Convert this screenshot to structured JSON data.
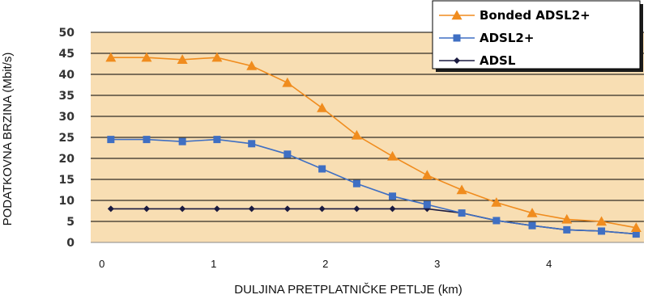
{
  "chart_data": {
    "type": "line",
    "xlabel": "DULJINA PRETPLATNIČKE PETLJE (km)",
    "ylabel": "PODATKOVNA BRZINA (Mbit/s)",
    "xlim": [
      -0.1,
      4.85
    ],
    "ylim": [
      0,
      50
    ],
    "xticks": [
      "0",
      "1",
      "2",
      "3",
      "4"
    ],
    "yticks": [
      "0",
      "5",
      "10",
      "15",
      "20",
      "25",
      "30",
      "35",
      "40",
      "45",
      "50"
    ],
    "grid": "horizontal",
    "background": "#f8deb3",
    "legend_position": "top-right",
    "x": [
      0.08,
      0.4,
      0.72,
      1.03,
      1.34,
      1.66,
      1.97,
      2.28,
      2.6,
      2.91,
      3.22,
      3.53,
      3.85,
      4.16,
      4.47,
      4.78
    ],
    "series": [
      {
        "name": "Bonded ADSL2+",
        "color": "#f08c1e",
        "marker": "triangle",
        "values": [
          44,
          44,
          43.5,
          44,
          42,
          38,
          32,
          25.5,
          20.5,
          16,
          12.5,
          9.5,
          7,
          5.5,
          5,
          3.5
        ]
      },
      {
        "name": "ADSL2+",
        "color": "#3f6fc3",
        "marker": "square",
        "values": [
          24.5,
          24.5,
          24,
          24.5,
          23.5,
          21,
          17.5,
          14,
          11,
          9,
          7,
          5.2,
          4,
          3,
          2.7,
          2
        ]
      },
      {
        "name": "ADSL",
        "color": "#1a1a40",
        "marker": "diamond",
        "values": [
          8,
          8,
          8,
          8,
          8,
          8,
          8,
          8,
          8,
          8,
          7,
          5.2,
          4,
          3,
          2.7,
          2
        ]
      }
    ]
  }
}
